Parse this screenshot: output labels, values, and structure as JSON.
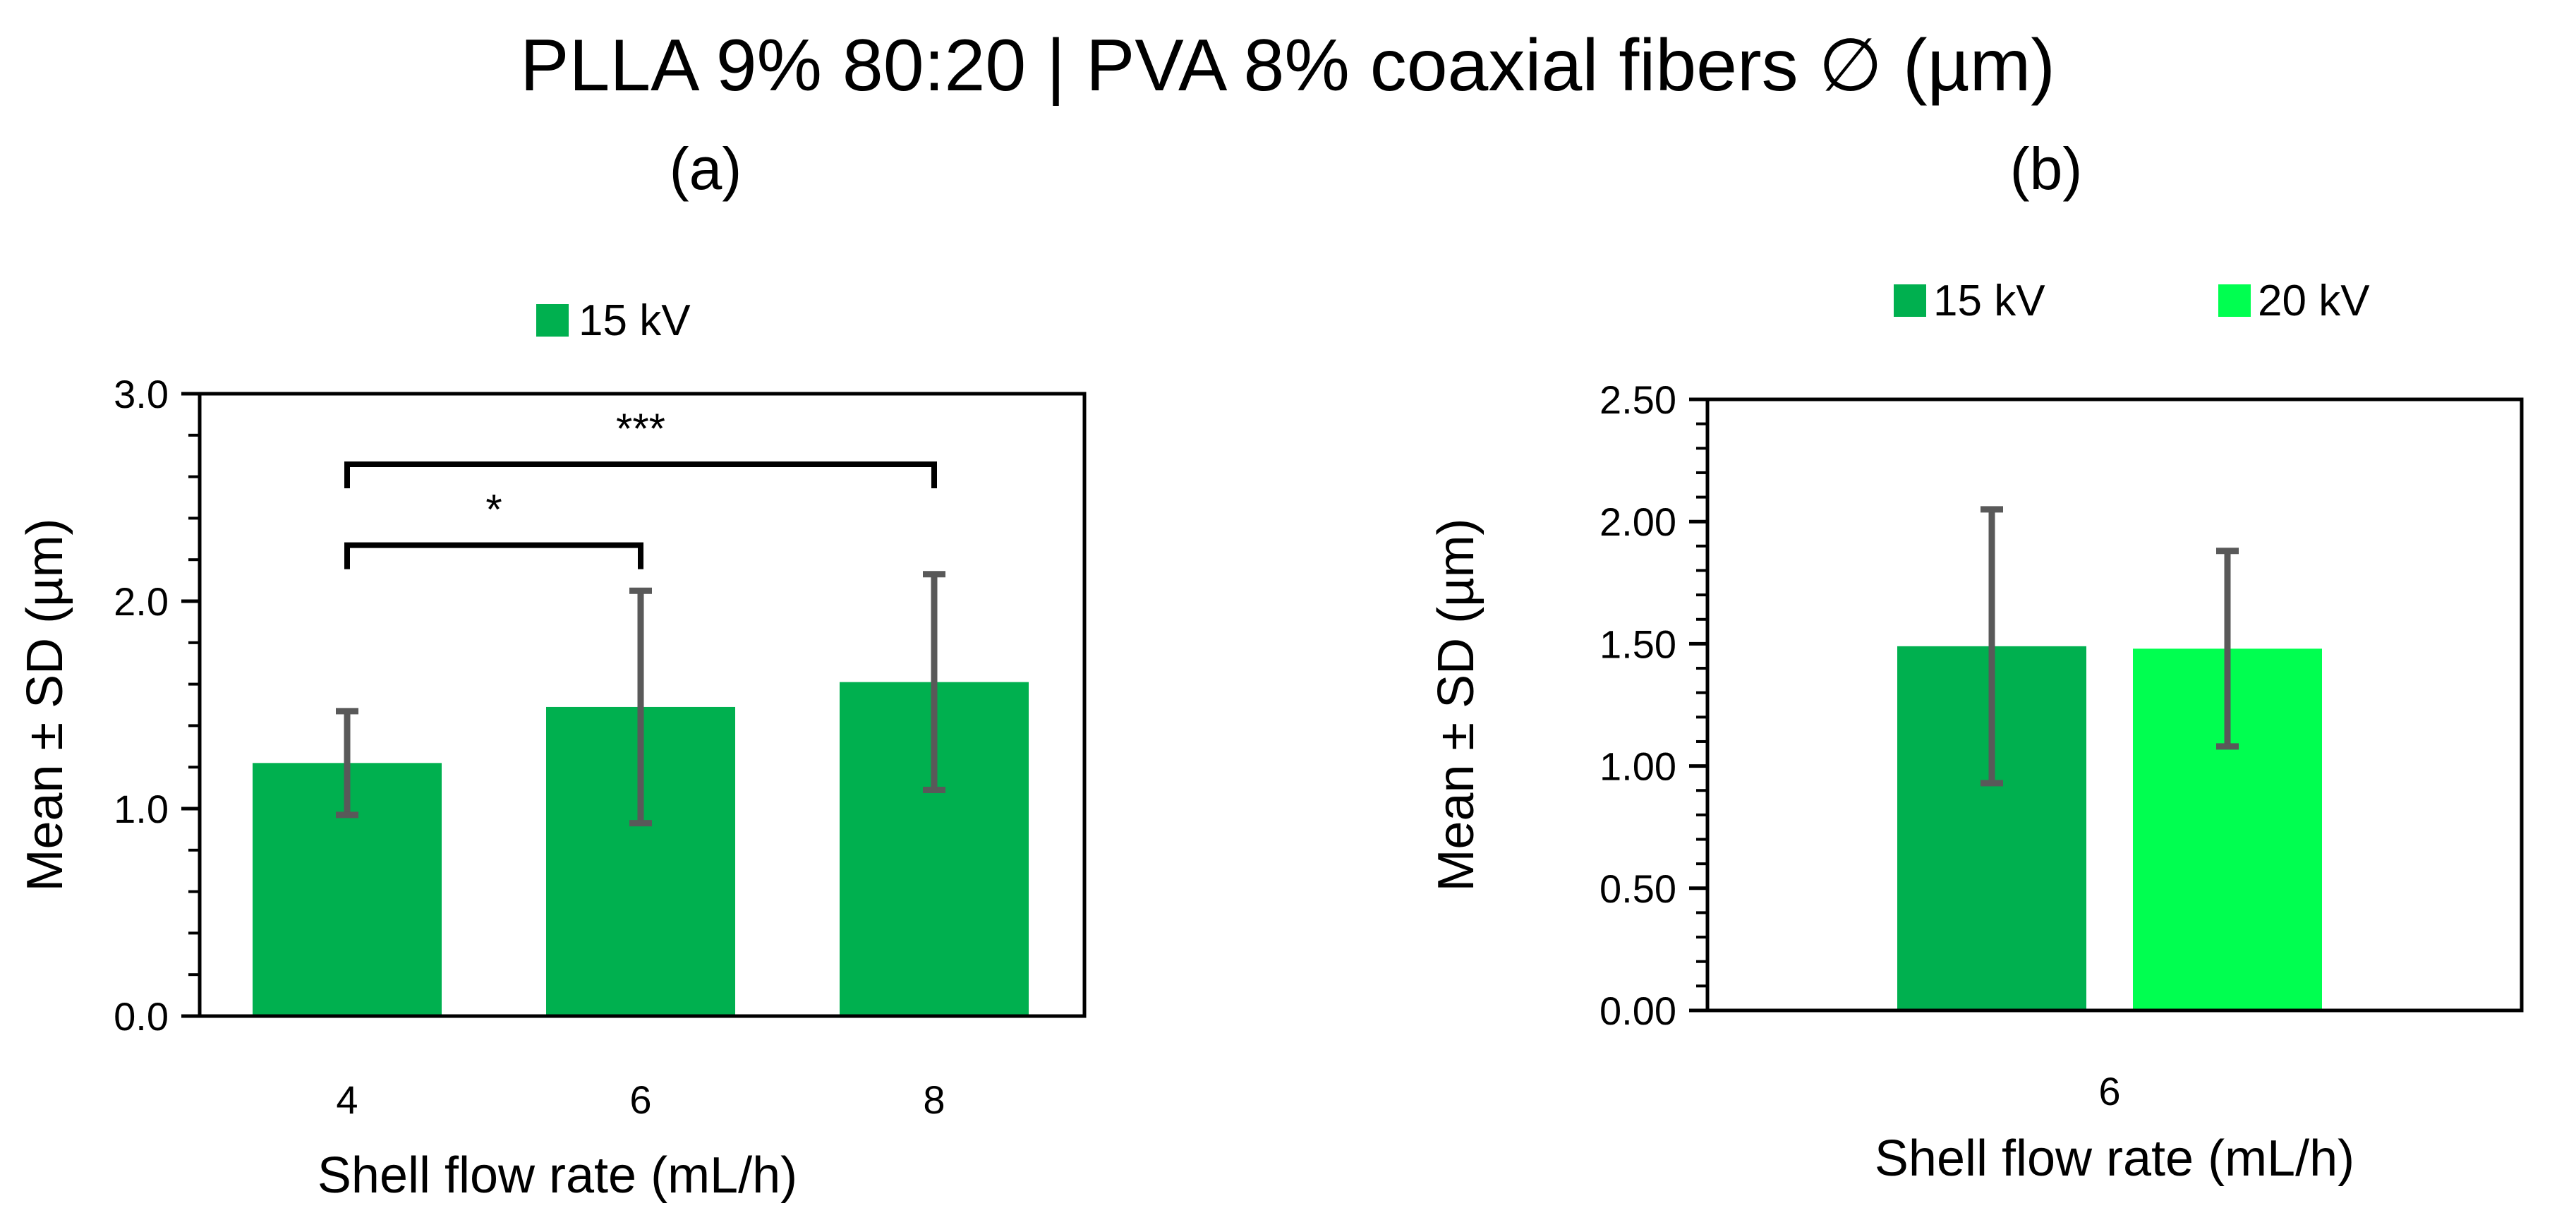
{
  "figure_title": "PLLA 9% 80:20 | PVA 8% coaxial fibers ∅ (µm)",
  "chart_data": [
    {
      "panel": "(a)",
      "type": "bar",
      "categories": [
        "4",
        "6",
        "8"
      ],
      "series": [
        {
          "name": "15 kV",
          "color": "#00b04f",
          "values": [
            1.22,
            1.49,
            1.61
          ],
          "errors": [
            0.25,
            0.56,
            0.52
          ]
        }
      ],
      "xlabel": "Shell flow rate (mL/h)",
      "ylabel": "Mean ± SD (µm)",
      "ylim": [
        0,
        3.0
      ],
      "yticks": [
        "0.0",
        "1.0",
        "2.0",
        "3.0"
      ],
      "yticks_values": [
        0,
        1,
        2,
        3
      ],
      "minor_step": 0.2,
      "legend_position": "top-center",
      "significance": [
        {
          "from": 0,
          "to": 1,
          "label": "*",
          "level": 2.27
        },
        {
          "from": 0,
          "to": 2,
          "label": "***",
          "level": 2.66
        }
      ]
    },
    {
      "panel": "(b)",
      "type": "bar",
      "categories": [
        "6"
      ],
      "series": [
        {
          "name": "15 kV",
          "color": "#00b04f",
          "values": [
            1.49
          ],
          "errors": [
            0.56
          ]
        },
        {
          "name": "20 kV",
          "color": "#00ff50",
          "values": [
            1.48
          ],
          "errors": [
            0.4
          ]
        }
      ],
      "xlabel": "Shell flow rate (mL/h)",
      "ylabel": "Mean ± SD (µm)",
      "ylim": [
        0,
        2.5
      ],
      "yticks": [
        "0.00",
        "0.50",
        "1.00",
        "1.50",
        "2.00",
        "2.50"
      ],
      "yticks_values": [
        0,
        0.5,
        1.0,
        1.5,
        2.0,
        2.5
      ],
      "minor_step": 0.1,
      "legend_position": "top-center",
      "significance": []
    }
  ],
  "colors": {
    "error_bar": "#595959",
    "axis": "#000000",
    "bracket": "#000000"
  }
}
